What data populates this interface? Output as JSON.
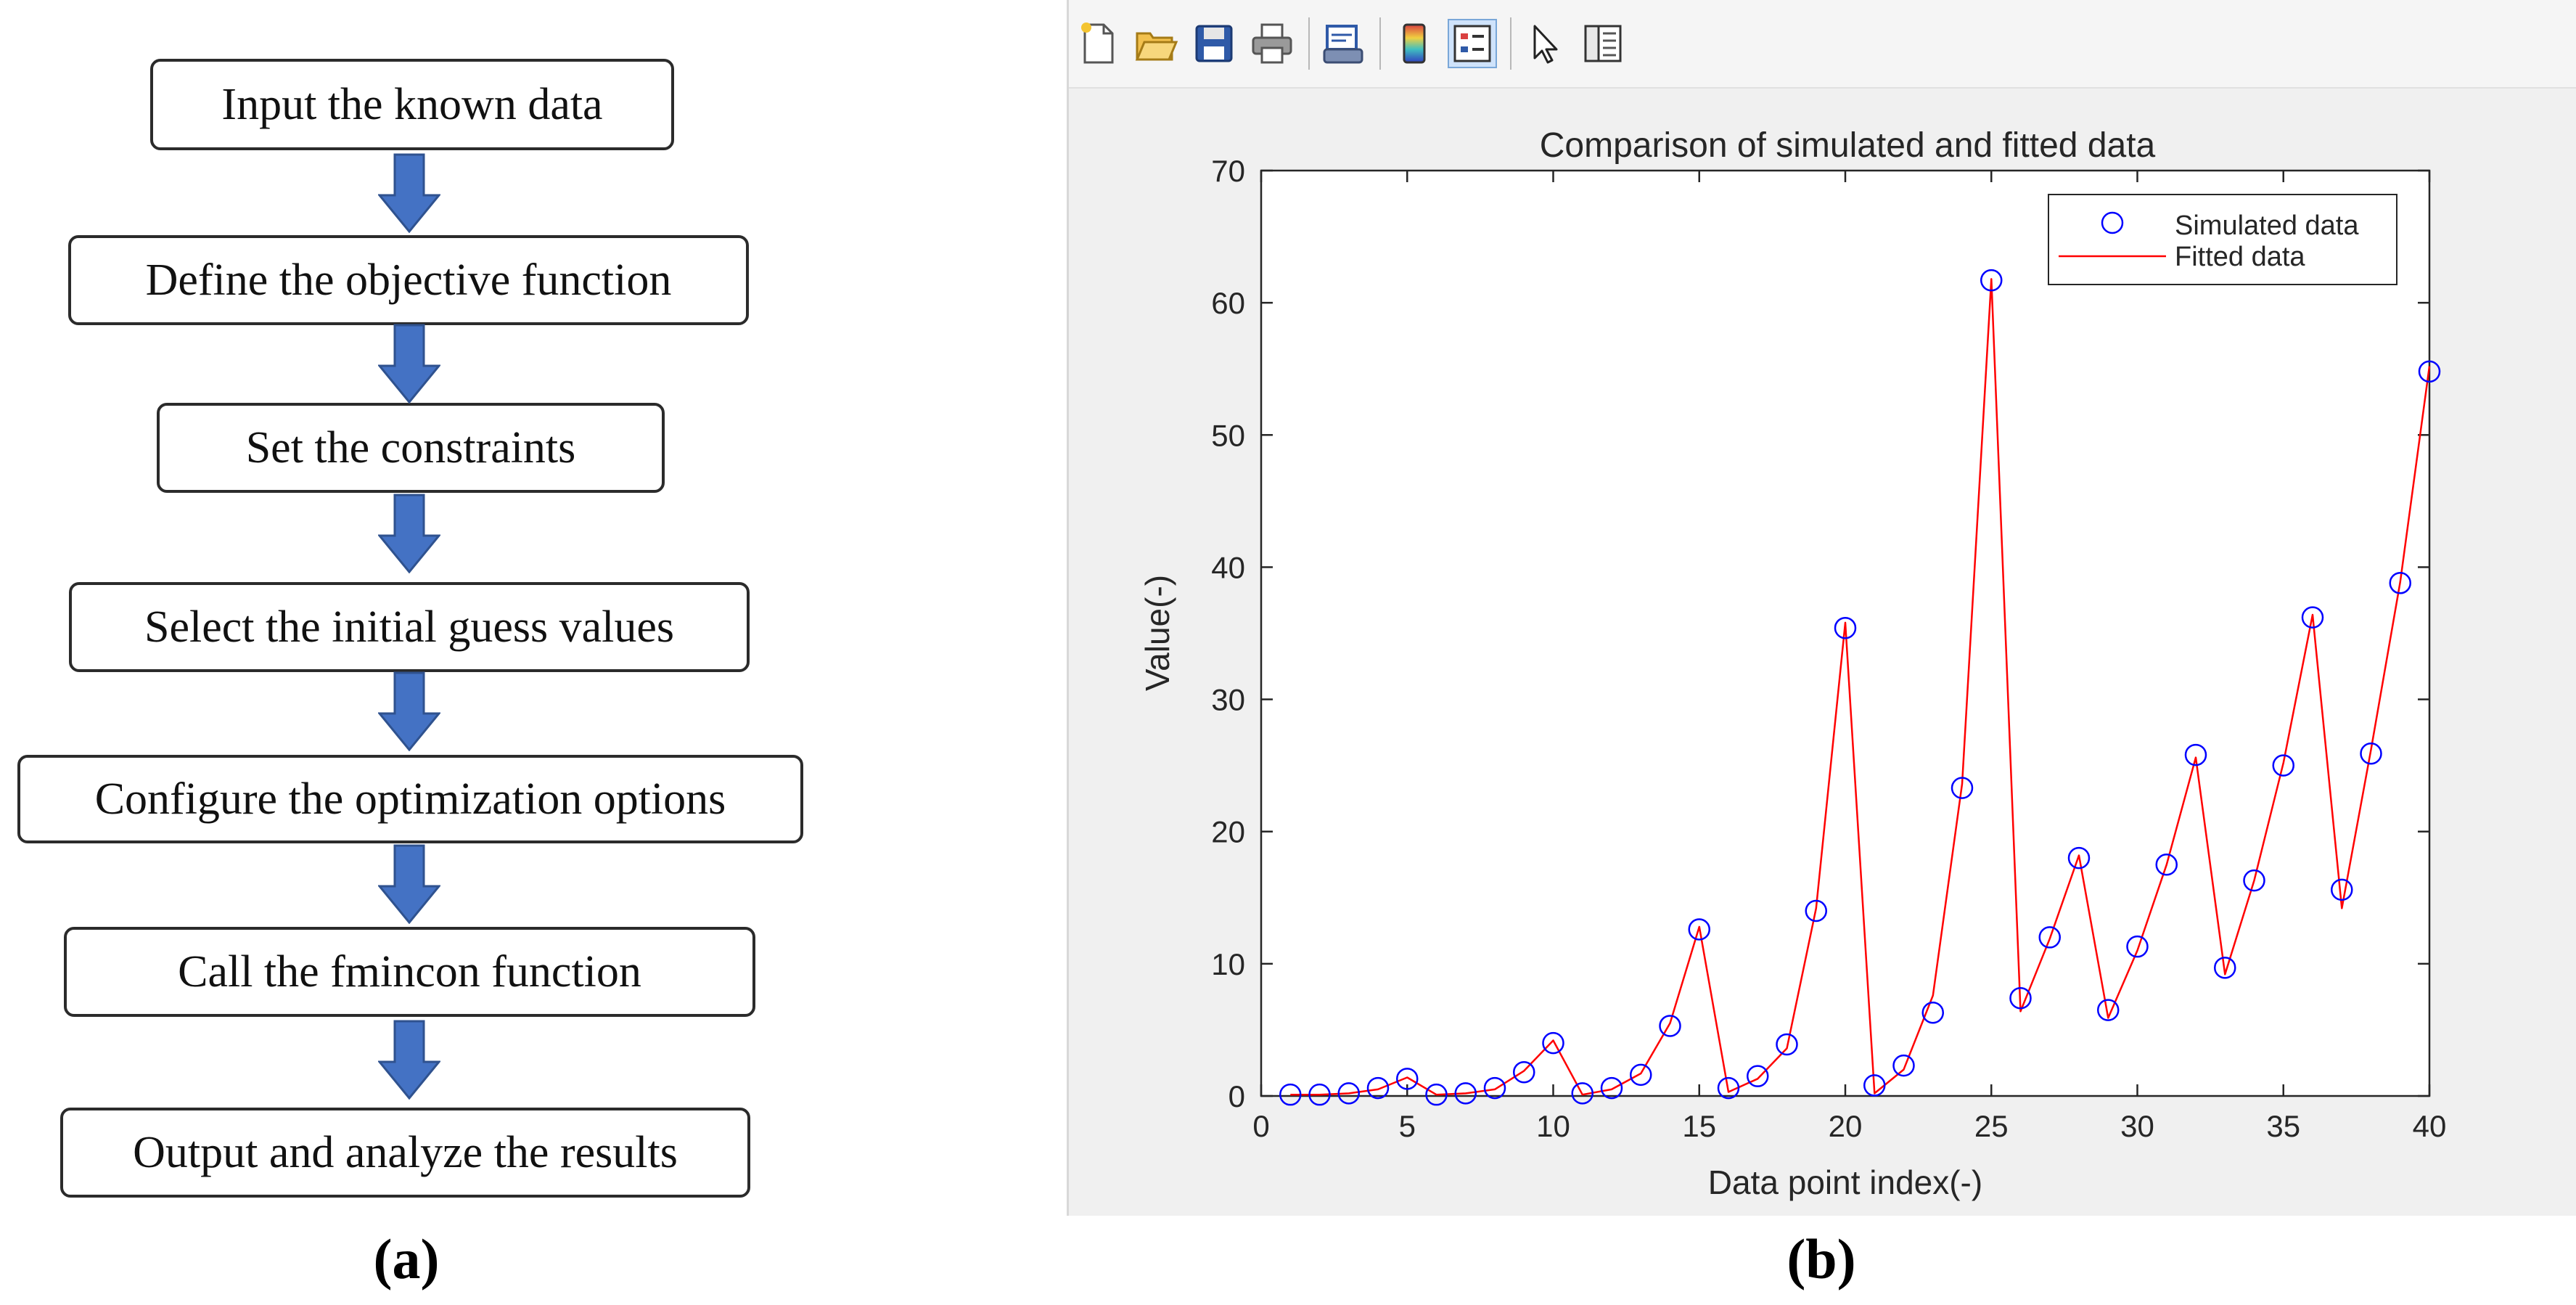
{
  "flowchart": {
    "steps": [
      "Input the known data",
      "Define the objective function",
      "Set the constraints",
      "Select the initial guess values",
      "Configure the optimization options",
      "Call the fmincon function",
      "Output and analyze the results"
    ],
    "arrow_color": "#4472c4",
    "panel_label": "(a)"
  },
  "figure_window": {
    "toolbar": {
      "icons": [
        "new-figure-icon",
        "open-file-icon",
        "save-icon",
        "print-icon",
        "print-preview-icon",
        "colorbar-icon",
        "legend-icon",
        "pointer-icon",
        "property-editor-icon"
      ],
      "pressed": "legend-icon"
    },
    "panel_label": "(b)"
  },
  "chart_data": {
    "type": "line",
    "title": "Comparison of simulated and fitted data",
    "xlabel": "Data point index(-)",
    "ylabel": "Value(-)",
    "xlim": [
      0,
      40
    ],
    "ylim": [
      0,
      70
    ],
    "xticks": [
      0,
      5,
      10,
      15,
      20,
      25,
      30,
      35,
      40
    ],
    "yticks": [
      0,
      10,
      20,
      30,
      40,
      50,
      60,
      70
    ],
    "grid": false,
    "legend_position": "top-right",
    "x": [
      1,
      2,
      3,
      4,
      5,
      6,
      7,
      8,
      9,
      10,
      11,
      12,
      13,
      14,
      15,
      16,
      17,
      18,
      19,
      20,
      21,
      22,
      23,
      24,
      25,
      26,
      27,
      28,
      29,
      30,
      31,
      32,
      33,
      34,
      35,
      36,
      37,
      38,
      39,
      40
    ],
    "series": [
      {
        "name": "Simulated data",
        "style": "markers",
        "marker": "circle",
        "color": "#0000ff",
        "values": [
          0.1,
          0.1,
          0.2,
          0.6,
          1.3,
          0.1,
          0.2,
          0.6,
          1.8,
          4.0,
          0.2,
          0.6,
          1.6,
          5.3,
          12.6,
          0.6,
          1.5,
          3.9,
          14.0,
          35.4,
          0.8,
          2.3,
          6.3,
          23.3,
          61.7,
          7.4,
          12.0,
          18.0,
          6.5,
          11.3,
          17.5,
          25.8,
          9.7,
          16.3,
          25.0,
          36.2,
          15.6,
          25.9,
          38.8,
          54.8
        ]
      },
      {
        "name": "Fitted data",
        "style": "line",
        "color": "#ff0000",
        "values": [
          0.1,
          0.1,
          0.2,
          0.5,
          1.4,
          0.1,
          0.2,
          0.5,
          1.9,
          4.2,
          0.1,
          0.5,
          1.7,
          5.5,
          12.8,
          0.3,
          1.3,
          3.6,
          14.2,
          35.8,
          0.2,
          2.0,
          7.6,
          23.6,
          61.8,
          6.4,
          11.9,
          18.2,
          5.9,
          11.0,
          17.5,
          25.6,
          9.2,
          16.3,
          25.2,
          36.4,
          14.2,
          26.2,
          38.9,
          55.2
        ]
      }
    ]
  }
}
